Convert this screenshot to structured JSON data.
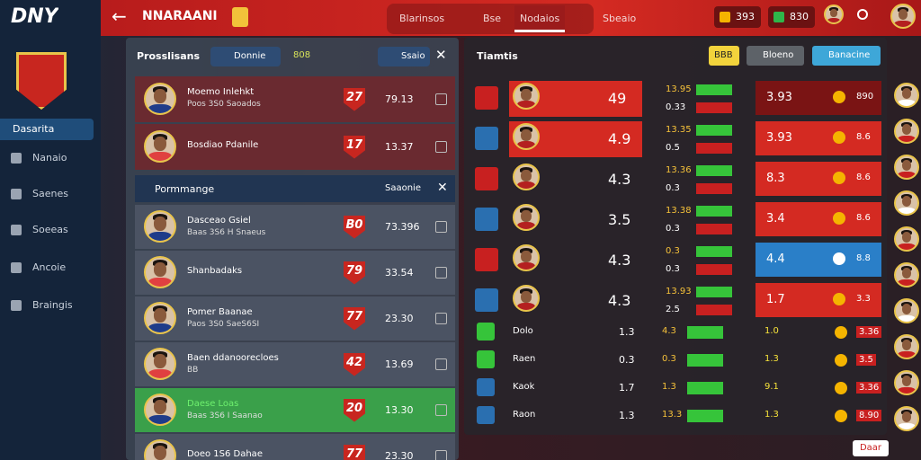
{
  "sidebar": {
    "logo": "DNY",
    "nav": [
      "Dasarita",
      "Nanaio",
      "Saenes",
      "Soeeas",
      "Ancoie",
      "Braingis"
    ]
  },
  "topbar": {
    "title": "NNARAANI",
    "tabs": [
      "Blarinsos",
      "Bse",
      "Nodaios",
      "Sbeaio"
    ],
    "coins": "393",
    "gems": "830"
  },
  "left_panel": {
    "title": "Prosslisans",
    "filter": "Donnie",
    "count": "808",
    "search": "Ssaio",
    "rows": [
      {
        "name": "Moemo Inlehkt",
        "sub": "Poos 3S0 Saoados",
        "badge": "27",
        "value": "79.13"
      },
      {
        "name": "Bosdiao Pdanile",
        "sub": "",
        "badge": "17",
        "value": "13.37"
      }
    ],
    "section": "Pormmange",
    "section_action": "Saaonie",
    "rows2": [
      {
        "name": "Dasceao Gsiel",
        "sub": "Baas 3S6 H Snaeus",
        "badge": "B0",
        "value": "73.396"
      },
      {
        "name": "Shanbadaks",
        "sub": "",
        "badge": "79",
        "value": "33.54"
      },
      {
        "name": "Pomer Baanae",
        "sub": "Paos 3S0 SaeS6SI",
        "badge": "77",
        "value": "23.30"
      },
      {
        "name": "Baen ddanoorecloes",
        "sub": "BB",
        "badge": "42",
        "value": "13.69"
      },
      {
        "name": "Daese Loas",
        "sub": "Baas 3S6 I Saanao",
        "badge": "20",
        "value": "13.30"
      },
      {
        "name": "Doeo 1S6 Dahae",
        "sub": "",
        "badge": "77",
        "value": "23.30"
      }
    ]
  },
  "right_panel": {
    "title": "Tiamtis",
    "buttons": [
      "BBB",
      "Bloeno",
      "Banacine"
    ],
    "rows": [
      {
        "rating": "49",
        "a": "13.95",
        "b": "0.33",
        "score": "3.93",
        "end": "890"
      },
      {
        "rating": "4.9",
        "a": "13.35",
        "b": "0.5",
        "score": "3.93",
        "end": "8.6"
      },
      {
        "rating": "4.3",
        "a": "13.36",
        "b": "0.3",
        "score": "8.3",
        "end": "8.6"
      },
      {
        "rating": "3.5",
        "a": "13.38",
        "b": "0.3",
        "score": "3.4",
        "end": "8.6"
      },
      {
        "rating": "4.3",
        "a": "0.3",
        "b": "0.3",
        "score": "4.4",
        "end": "8.8"
      },
      {
        "rating": "4.3",
        "a": "13.93",
        "b": "2.5",
        "score": "1.7",
        "end": "3.3"
      }
    ],
    "small_rows": [
      {
        "name": "Dolo",
        "rating": "1.3",
        "a": "4.3",
        "score": "1.0",
        "end": "3.36"
      },
      {
        "name": "Raen",
        "rating": "0.3",
        "a": "0.3",
        "score": "1.3",
        "end": "3.5"
      },
      {
        "name": "Kaok",
        "rating": "1.7",
        "a": "1.3",
        "score": "9.1",
        "end": "3.36"
      },
      {
        "name": "Raon",
        "rating": "1.3",
        "a": "13.3",
        "score": "1.3",
        "end": "8.90"
      }
    ],
    "footer": "Daar"
  }
}
